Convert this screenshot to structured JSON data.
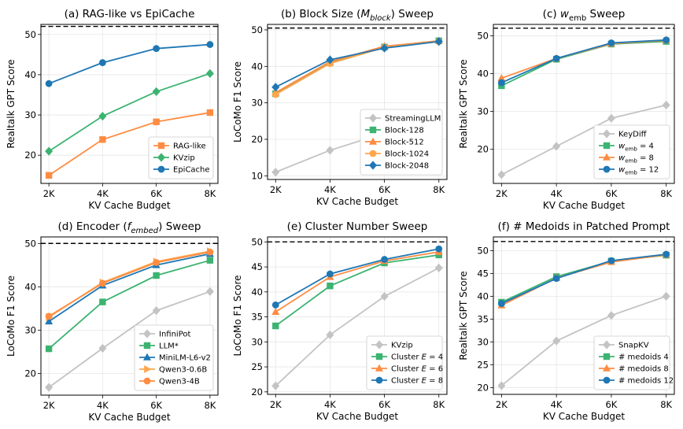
{
  "colors": {
    "orange": "#ff8c42",
    "green": "#3cb371",
    "blue": "#1f77b4",
    "gray": "#c3c3c3",
    "peach": "#ffa64d",
    "amber": "#ff9a3c"
  },
  "chart_data": [
    {
      "type": "line",
      "title_parts": [
        {
          "t": "(a) RAG-like vs EpiCache"
        }
      ],
      "xlabel": "KV Cache Budget",
      "ylabel": "Realtalk GPT Score",
      "categories": [
        "2K",
        "4K",
        "6K",
        "8K"
      ],
      "ylim": [
        13,
        52.5
      ],
      "yticks": [
        20,
        30,
        40,
        50
      ],
      "reference_line": 52,
      "series": [
        {
          "name_parts": [
            {
              "t": "RAG-like"
            }
          ],
          "color": "#ff8c42",
          "marker": "square",
          "values": [
            15.0,
            23.9,
            28.3,
            30.6
          ]
        },
        {
          "name_parts": [
            {
              "t": "KVzip"
            }
          ],
          "color": "#3cb371",
          "marker": "diamond",
          "values": [
            21.0,
            29.7,
            35.8,
            40.3
          ]
        },
        {
          "name_parts": [
            {
              "t": "EpiCache"
            }
          ],
          "color": "#1f77b4",
          "marker": "circle",
          "values": [
            37.8,
            43.0,
            46.5,
            47.5
          ]
        }
      ]
    },
    {
      "type": "line",
      "title_parts": [
        {
          "t": "(b) Block Size ("
        },
        {
          "t": "M",
          "it": true
        },
        {
          "t": "block",
          "it": true,
          "sub": true
        },
        {
          "t": ") Sweep"
        }
      ],
      "xlabel": "KV Cache Budget",
      "ylabel": "LoCoMo F1 Score",
      "categories": [
        "2K",
        "4K",
        "6K",
        "8K"
      ],
      "ylim": [
        9,
        51.5
      ],
      "yticks": [
        10,
        20,
        30,
        40,
        50
      ],
      "reference_line": 50.5,
      "series": [
        {
          "name_parts": [
            {
              "t": "StreamingLLM"
            }
          ],
          "color": "#c3c3c3",
          "marker": "diamond",
          "values": [
            11.0,
            17.0,
            21.7,
            26.6
          ]
        },
        {
          "name_parts": [
            {
              "t": "Block-128"
            }
          ],
          "color": "#3cb371",
          "marker": "square",
          "values": [
            32.5,
            41.0,
            45.3,
            47.0
          ]
        },
        {
          "name_parts": [
            {
              "t": "Block-512"
            }
          ],
          "color": "#ff8c42",
          "marker": "triangle",
          "values": [
            32.8,
            41.3,
            45.5,
            47.0
          ]
        },
        {
          "name_parts": [
            {
              "t": "Block-1024"
            }
          ],
          "color": "#ffa64d",
          "marker": "circle",
          "values": [
            32.3,
            40.8,
            45.2,
            46.8
          ]
        },
        {
          "name_parts": [
            {
              "t": "Block-2048"
            }
          ],
          "color": "#1f77b4",
          "marker": "diamond",
          "values": [
            34.3,
            41.8,
            45.0,
            46.8
          ]
        }
      ]
    },
    {
      "type": "line",
      "title_parts": [
        {
          "t": "(c) "
        },
        {
          "t": "w",
          "it": true
        },
        {
          "t": "emb",
          "sub": true
        },
        {
          "t": " Sweep"
        }
      ],
      "xlabel": "KV Cache Budget",
      "ylabel": "Realtalk GPT Score",
      "categories": [
        "2K",
        "4K",
        "6K",
        "8K"
      ],
      "ylim": [
        11,
        53
      ],
      "yticks": [
        20,
        30,
        40,
        50
      ],
      "reference_line": 52,
      "series": [
        {
          "name_parts": [
            {
              "t": "KeyDiff"
            }
          ],
          "color": "#c3c3c3",
          "marker": "diamond",
          "values": [
            13.3,
            20.8,
            28.2,
            31.7
          ]
        },
        {
          "name_parts": [
            {
              "t": "w",
              "it": true
            },
            {
              "t": "emb",
              "sub": true
            },
            {
              "t": " = 4"
            }
          ],
          "color": "#3cb371",
          "marker": "square",
          "values": [
            36.8,
            43.8,
            47.8,
            48.5
          ]
        },
        {
          "name_parts": [
            {
              "t": "w",
              "it": true
            },
            {
              "t": "emb",
              "sub": true
            },
            {
              "t": " = 8"
            }
          ],
          "color": "#ff8c42",
          "marker": "triangle",
          "values": [
            38.8,
            44.0,
            47.9,
            48.8
          ]
        },
        {
          "name_parts": [
            {
              "t": "w",
              "it": true
            },
            {
              "t": "emb",
              "sub": true
            },
            {
              "t": " = 12"
            }
          ],
          "color": "#1f77b4",
          "marker": "circle",
          "values": [
            37.6,
            44.0,
            48.1,
            48.9
          ]
        }
      ]
    },
    {
      "type": "line",
      "title_parts": [
        {
          "t": "(d) Encoder ("
        },
        {
          "t": "f",
          "it": true
        },
        {
          "t": "embed",
          "it": true,
          "sub": true
        },
        {
          "t": ") Sweep"
        }
      ],
      "xlabel": "KV Cache Budget",
      "ylabel": "LoCoMo F1 Score",
      "categories": [
        "2K",
        "4K",
        "6K",
        "8K"
      ],
      "ylim": [
        15,
        51.5
      ],
      "yticks": [
        20,
        30,
        40,
        50
      ],
      "reference_line": 50,
      "series": [
        {
          "name_parts": [
            {
              "t": "InfiniPot"
            }
          ],
          "color": "#c3c3c3",
          "marker": "diamond",
          "values": [
            16.8,
            25.8,
            34.5,
            38.9
          ]
        },
        {
          "name_parts": [
            {
              "t": "LLM*"
            }
          ],
          "color": "#3cb371",
          "marker": "square",
          "values": [
            25.7,
            36.5,
            42.6,
            46.1
          ]
        },
        {
          "name_parts": [
            {
              "t": "MiniLM-L6-v2"
            }
          ],
          "color": "#1f77b4",
          "marker": "triangle",
          "values": [
            32.0,
            40.3,
            45.0,
            47.6
          ]
        },
        {
          "name_parts": [
            {
              "t": "Qwen3-0.6B"
            }
          ],
          "color": "#ffa64d",
          "marker": "triangle-right",
          "values": [
            33.0,
            41.0,
            45.8,
            48.2
          ]
        },
        {
          "name_parts": [
            {
              "t": "Qwen3-4B"
            }
          ],
          "color": "#ff8c42",
          "marker": "circle",
          "values": [
            33.2,
            40.8,
            45.6,
            48.0
          ]
        }
      ]
    },
    {
      "type": "line",
      "title_parts": [
        {
          "t": "(e) Cluster Number Sweep"
        }
      ],
      "xlabel": "KV Cache Budget",
      "ylabel": "LoCoMo F1 Score",
      "categories": [
        "2K",
        "4K",
        "6K",
        "8K"
      ],
      "ylim": [
        19.5,
        51
      ],
      "yticks": [
        20,
        25,
        30,
        35,
        40,
        45,
        50
      ],
      "reference_line": 50,
      "series": [
        {
          "name_parts": [
            {
              "t": "KVzip"
            }
          ],
          "color": "#c3c3c3",
          "marker": "diamond",
          "values": [
            21.2,
            31.4,
            39.1,
            44.8
          ]
        },
        {
          "name_parts": [
            {
              "t": "Cluster "
            },
            {
              "t": "E",
              "it": true
            },
            {
              "t": " = 4"
            }
          ],
          "color": "#3cb371",
          "marker": "square",
          "values": [
            33.2,
            41.2,
            45.8,
            47.4
          ]
        },
        {
          "name_parts": [
            {
              "t": "Cluster "
            },
            {
              "t": "E",
              "it": true
            },
            {
              "t": " = 6"
            }
          ],
          "color": "#ff8c42",
          "marker": "triangle",
          "values": [
            36.0,
            43.0,
            46.2,
            48.0
          ]
        },
        {
          "name_parts": [
            {
              "t": "Cluster "
            },
            {
              "t": "E",
              "it": true
            },
            {
              "t": " = 8"
            }
          ],
          "color": "#1f77b4",
          "marker": "circle",
          "values": [
            37.4,
            43.6,
            46.5,
            48.6
          ]
        }
      ]
    },
    {
      "type": "line",
      "title_parts": [
        {
          "t": "(f) # Medoids in Patched Prompt"
        }
      ],
      "xlabel": "KV Cache Budget",
      "ylabel": "Realtalk GPT Score",
      "categories": [
        "2K",
        "4K",
        "6K",
        "8K"
      ],
      "ylim": [
        18.5,
        53
      ],
      "yticks": [
        20,
        25,
        30,
        35,
        40,
        45,
        50
      ],
      "reference_line": 52,
      "series": [
        {
          "name_parts": [
            {
              "t": "SnapKV"
            }
          ],
          "color": "#c3c3c3",
          "marker": "diamond",
          "values": [
            20.4,
            30.2,
            35.8,
            40.0
          ]
        },
        {
          "name_parts": [
            {
              "t": "# medoids 4"
            }
          ],
          "color": "#3cb371",
          "marker": "square",
          "values": [
            38.7,
            44.3,
            47.7,
            49.0
          ]
        },
        {
          "name_parts": [
            {
              "t": "# medoids 8"
            }
          ],
          "color": "#ff8c42",
          "marker": "triangle",
          "values": [
            38.0,
            44.0,
            47.5,
            49.1
          ]
        },
        {
          "name_parts": [
            {
              "t": "# medoids 12"
            }
          ],
          "color": "#1f77b4",
          "marker": "circle",
          "values": [
            38.4,
            43.9,
            47.8,
            49.2
          ]
        }
      ]
    }
  ]
}
